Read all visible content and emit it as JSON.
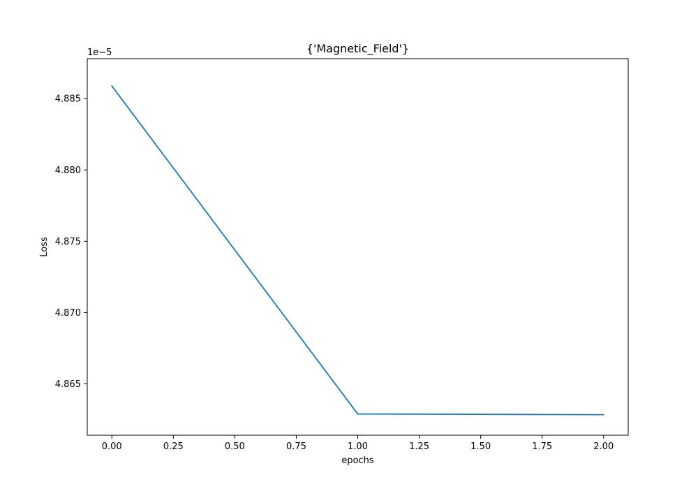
{
  "chart_data": {
    "type": "line",
    "title": "{'Magnetic_Field'}",
    "xlabel": "epochs",
    "ylabel": "Loss",
    "offset_text": "1e−5",
    "xlim": [
      -0.1,
      2.1
    ],
    "ylim": [
      4.8614,
      4.8878
    ],
    "x_ticks": [
      0.0,
      0.25,
      0.5,
      0.75,
      1.0,
      1.25,
      1.5,
      1.75,
      2.0
    ],
    "x_tick_labels": [
      "0.00",
      "0.25",
      "0.50",
      "0.75",
      "1.00",
      "1.25",
      "1.50",
      "1.75",
      "2.00"
    ],
    "y_ticks": [
      4.865,
      4.87,
      4.875,
      4.88,
      4.885
    ],
    "y_tick_labels": [
      "4.865",
      "4.870",
      "4.875",
      "4.880",
      "4.885"
    ],
    "grid": false,
    "series": [
      {
        "color": "#1f77b4",
        "x": [
          0,
          1,
          2
        ],
        "y": [
          4.88589,
          4.86289,
          4.86284
        ]
      }
    ]
  }
}
